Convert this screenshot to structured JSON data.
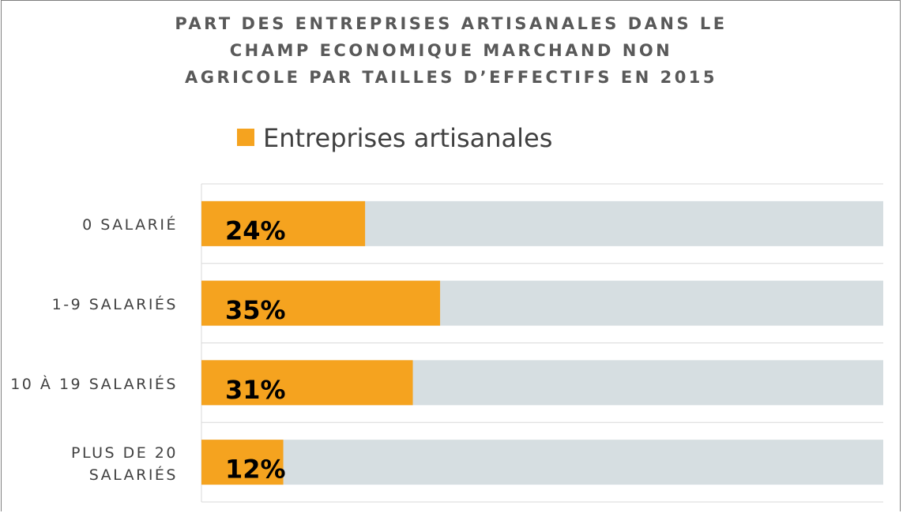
{
  "chart_data": {
    "type": "bar",
    "orientation": "horizontal",
    "title": [
      "PART DES ENTREPRISES ARTISANALES DANS LE",
      "CHAMP ECONOMIQUE MARCHAND NON",
      "AGRICOLE PAR TAILLES D’EFFECTIFS EN 2015"
    ],
    "categories": [
      "0 SALARIÉ",
      "1-9 SALARIÉS",
      "10 À 19 SALARIÉS",
      "PLUS DE 20 SALARIÉS"
    ],
    "series": [
      {
        "name": "Entreprises artisanales",
        "color": "#F5A31F",
        "values": [
          24,
          35,
          31,
          12
        ],
        "value_labels": [
          "24%",
          "35%",
          "31%",
          "12%"
        ]
      }
    ],
    "background_color": "#D6DEE1",
    "xlim": [
      0,
      100
    ]
  }
}
